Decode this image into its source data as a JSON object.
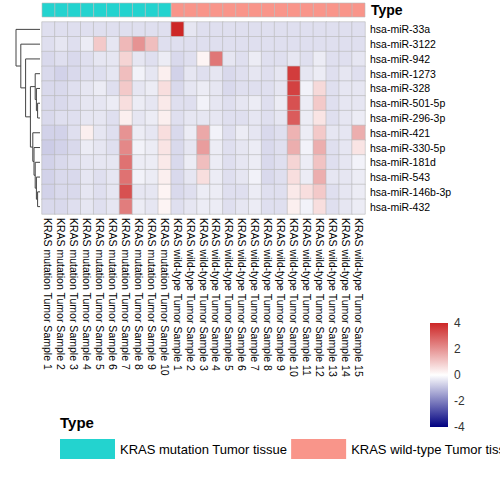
{
  "chart_data": {
    "type": "heatmap",
    "categories": [
      "KRAS mutation Tumor Sample 1",
      "KRAS mutation Tumor Sample 2",
      "KRAS mutation Tumor Sample 3",
      "KRAS mutation Tumor Sample 4",
      "KRAS mutation Tumor Sample 5",
      "KRAS mutation Tumor Sample 6",
      "KRAS mutation Tumor Sample 7",
      "KRAS mutation Tumor Sample 8",
      "KRAS mutation Tumor Sample 9",
      "KRAS mutation Tumor Sample 10",
      "KRAS wild-type Tumor Sample 1",
      "KRAS wild-type Tumor Sample 2",
      "KRAS wild-type Tumor Sample 3",
      "KRAS wild-type Tumor Sample 4",
      "KRAS wild-type Tumor Sample 5",
      "KRAS wild-type Tumor Sample 6",
      "KRAS wild-type Tumor Sample 7",
      "KRAS wild-type Tumor Sample 8",
      "KRAS wild-type Tumor Sample 9",
      "KRAS wild-type Tumor Sample 10",
      "KRAS wild-type Tumor Sample 11",
      "KRAS wild-type Tumor Sample 12",
      "KRAS wild-type Tumor Sample 13",
      "KRAS wild-type Tumor Sample 14",
      "KRAS wild-type Tumor Sample 15"
    ],
    "rows": [
      "hsa-miR-33a",
      "hsa-miR-3122",
      "hsa-miR-942",
      "hsa-miR-1273",
      "hsa-miR-328",
      "hsa-miR-501-5p",
      "hsa-miR-296-3p",
      "hsa-miR-421",
      "hsa-miR-330-5p",
      "hsa-miR-181d",
      "hsa-miR-543",
      "hsa-miR-146b-3p",
      "hsa-miR-432"
    ],
    "cells": [
      [
        -0.5,
        -0.5,
        -0.5,
        -0.5,
        -0.5,
        -0.5,
        -0.5,
        -0.5,
        -0.5,
        -0.5,
        4.0,
        -0.4,
        -0.5,
        -0.5,
        -0.5,
        -0.5,
        -0.5,
        -0.5,
        -0.5,
        -0.5,
        -0.5,
        -0.5,
        -0.5,
        -0.5,
        -0.5
      ],
      [
        -0.5,
        -0.4,
        -0.5,
        -0.3,
        1.0,
        -0.4,
        1.3,
        2.0,
        1.2,
        -0.5,
        -0.5,
        -0.5,
        -0.5,
        -0.5,
        -0.5,
        -0.5,
        -0.5,
        -0.5,
        -0.5,
        -0.5,
        -0.5,
        -0.5,
        -0.5,
        -0.5,
        -0.5
      ],
      [
        -0.6,
        -0.5,
        -0.6,
        -0.5,
        -0.4,
        -0.4,
        0.8,
        -0.4,
        -0.5,
        -0.3,
        -0.6,
        -0.5,
        0.2,
        2.5,
        -0.4,
        -0.5,
        -0.3,
        -0.5,
        -0.5,
        -0.4,
        -0.5,
        -0.3,
        -0.5,
        -0.5,
        -0.4
      ],
      [
        -0.6,
        -0.7,
        -0.6,
        -0.5,
        -0.5,
        -0.4,
        1.2,
        -0.2,
        -0.4,
        0.3,
        -0.7,
        -0.4,
        -0.5,
        -0.4,
        -0.6,
        -0.5,
        -0.4,
        -0.5,
        -0.4,
        3.6,
        -0.4,
        -0.3,
        -0.5,
        -0.4,
        -0.5
      ],
      [
        -0.6,
        -0.6,
        -0.5,
        -0.4,
        -0.3,
        -0.5,
        1.0,
        -0.4,
        -0.3,
        0.6,
        -0.6,
        -0.4,
        -0.3,
        -0.4,
        -0.6,
        -0.5,
        -0.5,
        -0.5,
        -0.4,
        3.5,
        -0.2,
        0.7,
        -0.5,
        -0.4,
        -0.4
      ],
      [
        -0.6,
        -0.6,
        -0.5,
        -0.4,
        -0.4,
        -0.3,
        0.6,
        -0.3,
        -0.4,
        0.4,
        -0.5,
        -0.5,
        -0.2,
        -0.4,
        -0.5,
        -0.4,
        -0.3,
        -0.5,
        -0.3,
        3.2,
        -0.3,
        1.0,
        -0.5,
        -0.4,
        -0.4
      ],
      [
        -0.6,
        -0.5,
        -0.5,
        -0.4,
        -0.4,
        -0.5,
        0.3,
        -0.4,
        -0.3,
        0.3,
        -0.5,
        -0.4,
        -0.4,
        -0.4,
        -0.5,
        -0.5,
        -0.4,
        -0.5,
        -0.4,
        3.0,
        -0.3,
        0.5,
        -0.5,
        -0.4,
        -0.3
      ],
      [
        -0.7,
        -0.7,
        -0.5,
        0.3,
        -0.4,
        -0.5,
        2.0,
        -0.3,
        -0.4,
        0.6,
        -0.6,
        -0.3,
        1.6,
        -0.2,
        -0.5,
        -0.3,
        -0.4,
        -0.6,
        -0.5,
        1.4,
        -0.3,
        1.0,
        -0.4,
        -0.4,
        1.5
      ],
      [
        -0.8,
        -0.7,
        -0.6,
        -0.3,
        -0.4,
        -0.5,
        2.2,
        -0.2,
        -0.3,
        0.5,
        -0.6,
        -0.4,
        1.8,
        -0.3,
        -0.5,
        -0.4,
        -0.3,
        -0.6,
        -0.5,
        1.5,
        -0.2,
        1.5,
        -0.5,
        -0.4,
        0.5
      ],
      [
        -0.7,
        -0.6,
        -0.5,
        -0.4,
        -0.4,
        -0.4,
        2.6,
        -0.3,
        -0.3,
        0.4,
        -0.6,
        -0.3,
        1.2,
        -0.3,
        -0.5,
        -0.4,
        -0.3,
        -0.6,
        -0.5,
        0.8,
        -0.3,
        1.1,
        -0.5,
        -0.4,
        -0.2
      ],
      [
        -0.7,
        -0.6,
        -0.6,
        -0.4,
        -0.5,
        -0.4,
        2.6,
        -0.2,
        -0.3,
        0.3,
        -0.6,
        -0.4,
        0.6,
        -0.3,
        -0.5,
        -0.4,
        -0.2,
        -0.6,
        -0.5,
        0.6,
        -0.3,
        1.5,
        -0.4,
        -0.4,
        -0.3
      ],
      [
        -0.7,
        -0.6,
        -0.6,
        -0.4,
        -0.5,
        -0.4,
        3.2,
        -0.4,
        -0.4,
        0.2,
        -0.6,
        -0.5,
        -0.3,
        -0.3,
        -0.5,
        -0.5,
        -0.3,
        -0.5,
        -0.5,
        0.4,
        0.6,
        1.0,
        -0.5,
        -0.4,
        -0.3
      ],
      [
        -0.6,
        -0.6,
        -0.5,
        -0.4,
        -0.5,
        -0.4,
        2.4,
        -0.3,
        -0.4,
        0.2,
        -0.5,
        -0.4,
        -0.3,
        -0.3,
        -0.5,
        -0.4,
        -0.3,
        -0.5,
        -0.5,
        0.3,
        -0.2,
        0.6,
        -0.5,
        -0.4,
        -0.3
      ]
    ],
    "colorbar": {
      "range": [
        -4,
        4
      ],
      "ticks": [
        -4,
        -2,
        0,
        2,
        4
      ],
      "colors": [
        "#000080",
        "#FFFFFF",
        "#CD2626"
      ]
    },
    "annotation": {
      "title": "Type",
      "groups": [
        0,
        0,
        0,
        0,
        0,
        0,
        0,
        0,
        0,
        0,
        1,
        1,
        1,
        1,
        1,
        1,
        1,
        1,
        1,
        1,
        1,
        1,
        1,
        1,
        1
      ],
      "levels": [
        {
          "name": "KRAS mutation Tumor tissue",
          "color": "#23D3CF"
        },
        {
          "name": "KRAS wild-type Tumor tissue",
          "color": "#F9958A"
        }
      ]
    },
    "row_dendrogram": {
      "height": 10,
      "children": [
        0,
        {
          "height": 8,
          "children": [
            1,
            {
              "height": 6,
              "children": [
                2,
                {
                  "height": 4,
                  "children": [
                    {
                      "height": 2,
                      "children": [
                        3,
                        {
                          "height": 1.5,
                          "children": [
                            4,
                            {
                              "height": 1,
                              "children": [
                                5,
                                6
                              ]
                            }
                          ]
                        }
                      ]
                    },
                    {
                      "height": 3,
                      "children": [
                        7,
                        {
                          "height": 2.5,
                          "children": [
                            8,
                            {
                              "height": 2,
                              "children": [
                                9,
                                {
                                  "height": 1.5,
                                  "children": [
                                    10,
                                    {
                                      "height": 1,
                                      "children": [
                                        11,
                                        12
                                      ]
                                    }
                                  ]
                                }
                              ]
                            }
                          ]
                        }
                      ]
                    }
                  ]
                }
              ]
            }
          ]
        }
      ]
    },
    "legend": "bottom"
  }
}
